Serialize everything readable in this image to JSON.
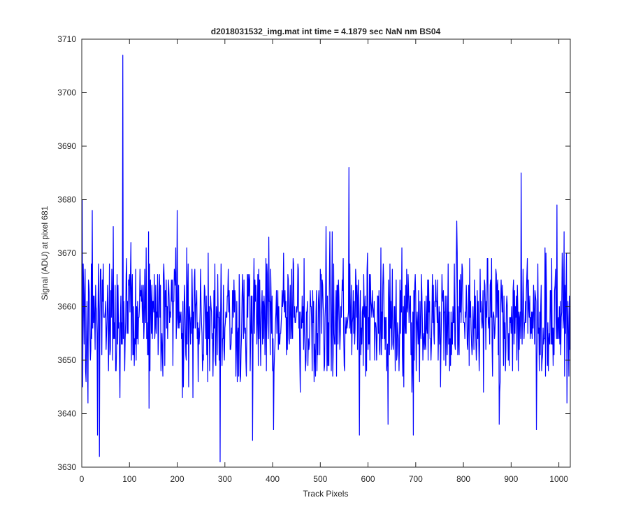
{
  "chart_data": {
    "type": "line",
    "title": "d2018031532_img.mat int time = 4.1879 sec  NaN nm BS04",
    "xlabel": "Track Pixels",
    "ylabel": "Signal (ADU) at pixel 681",
    "xlim": [
      0,
      1024
    ],
    "ylim": [
      3630,
      3710
    ],
    "xticks": [
      0,
      100,
      200,
      300,
      400,
      500,
      600,
      700,
      800,
      900,
      1000
    ],
    "yticks": [
      3630,
      3640,
      3650,
      3660,
      3670,
      3680,
      3690,
      3700,
      3710
    ],
    "grid": false,
    "line_color": "#0000ff",
    "n_points": 1024,
    "baseline": 3658,
    "noise_range": [
      3640,
      3676
    ],
    "x": [
      1,
      13,
      22,
      33,
      37,
      86,
      140,
      200,
      265,
      290,
      358,
      402,
      512,
      560,
      582,
      642,
      695,
      786,
      875,
      921,
      953,
      996,
      1024
    ],
    "y": [
      3680,
      3642,
      3678,
      3636,
      3632,
      3707,
      3674,
      3678,
      3670,
      3631,
      3635,
      3637,
      3675,
      3686,
      3636,
      3638,
      3636,
      3676,
      3638,
      3685,
      3637,
      3679,
      3652
    ]
  }
}
